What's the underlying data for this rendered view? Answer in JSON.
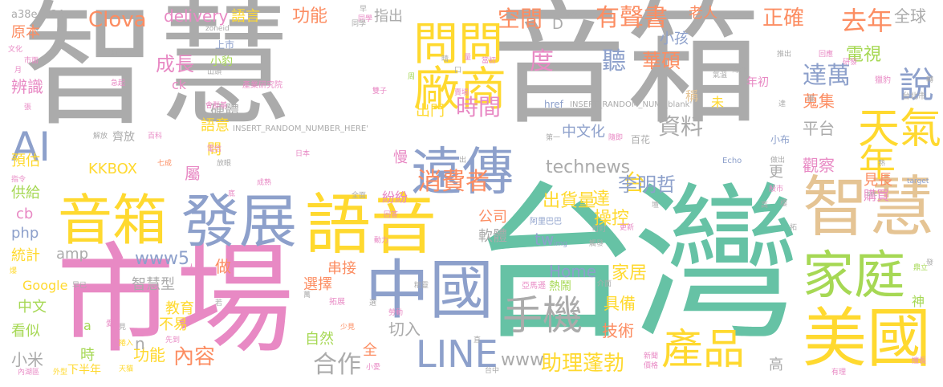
{
  "palette": {
    "gray": "#ababab",
    "pink": "#e889c4",
    "green": "#66c2a5",
    "blue": "#8da0cb",
    "yellow": "#ffd92f",
    "orange": "#fc8d62",
    "olive": "#a6d854",
    "tan": "#e5c494"
  },
  "words": [
    {
      "text": "智慧",
      "color": "gray"
    },
    {
      "text": "音箱",
      "color": "gray"
    },
    {
      "text": "台灣",
      "color": "green"
    },
    {
      "text": "市場",
      "color": "pink"
    },
    {
      "text": "音箱",
      "color": "yellow"
    },
    {
      "text": "發展",
      "color": "blue"
    },
    {
      "text": "語音",
      "color": "yellow"
    },
    {
      "text": "智慧",
      "color": "tan"
    },
    {
      "text": "中國",
      "color": "blue"
    },
    {
      "text": "家庭",
      "color": "olive"
    },
    {
      "text": "美國",
      "color": "yellow"
    },
    {
      "text": "遠傳",
      "color": "blue"
    },
    {
      "text": "問問",
      "color": "yellow"
    },
    {
      "text": "廠商",
      "color": "yellow"
    },
    {
      "text": "手機",
      "color": "gray"
    },
    {
      "text": "產品",
      "color": "yellow"
    },
    {
      "text": "LINE",
      "color": "blue"
    },
    {
      "text": "天氣",
      "color": "yellow"
    },
    {
      "text": "說",
      "color": "blue"
    },
    {
      "text": "年",
      "color": "yellow"
    },
    {
      "text": "AI",
      "color": "blue"
    },
    {
      "text": "消費者",
      "color": "orange"
    },
    {
      "text": "時間",
      "color": "pink"
    },
    {
      "text": "有聲書",
      "color": "orange"
    },
    {
      "text": "空間",
      "color": "orange"
    },
    {
      "text": "去年",
      "color": "orange"
    },
    {
      "text": "正確",
      "color": "orange"
    },
    {
      "text": "度",
      "color": "pink"
    },
    {
      "text": "聽",
      "color": "blue"
    },
    {
      "text": "華碩",
      "color": "orange"
    },
    {
      "text": "電視",
      "color": "olive"
    },
    {
      "text": "達萬",
      "color": "blue"
    },
    {
      "text": "台",
      "color": "yellow"
    },
    {
      "text": "李明哲",
      "color": "blue"
    },
    {
      "text": "資料",
      "color": "gray"
    },
    {
      "text": "technews",
      "color": "gray"
    },
    {
      "text": "中文化",
      "color": "blue"
    },
    {
      "text": "助理蓬勃",
      "color": "yellow"
    },
    {
      "text": "出貨量",
      "color": "yellow"
    },
    {
      "text": "達",
      "color": "yellow"
    },
    {
      "text": "操控",
      "color": "yellow"
    },
    {
      "text": "合作",
      "color": "gray"
    },
    {
      "text": "內容",
      "color": "orange"
    },
    {
      "text": "Clova",
      "color": "orange"
    },
    {
      "text": "delivery",
      "color": "pink"
    },
    {
      "text": "語言",
      "color": "yellow"
    },
    {
      "text": "功能",
      "color": "orange"
    },
    {
      "text": "指出",
      "color": "gray"
    },
    {
      "text": "全球",
      "color": "gray"
    },
    {
      "text": "老人",
      "color": "orange"
    },
    {
      "text": "原本",
      "color": "orange"
    },
    {
      "text": "成長",
      "color": "pink"
    },
    {
      "text": "硬體",
      "color": "gray"
    },
    {
      "text": "語意",
      "color": "yellow"
    },
    {
      "text": "辨識",
      "color": "pink"
    },
    {
      "text": "KKBOX",
      "color": "yellow"
    },
    {
      "text": "預估",
      "color": "yellow"
    },
    {
      "text": "供給",
      "color": "olive"
    },
    {
      "text": "cb",
      "color": "pink"
    },
    {
      "text": "php",
      "color": "blue"
    },
    {
      "text": "統計",
      "color": "yellow"
    },
    {
      "text": "amp",
      "color": "gray"
    },
    {
      "text": "www5",
      "color": "blue"
    },
    {
      "text": "Google",
      "color": "yellow"
    },
    {
      "text": "智慧型",
      "color": "gray"
    },
    {
      "text": "中文",
      "color": "olive"
    },
    {
      "text": "看似",
      "color": "olive"
    },
    {
      "text": "教育",
      "color": "yellow"
    },
    {
      "text": "不易",
      "color": "yellow"
    },
    {
      "text": "小米",
      "color": "gray"
    },
    {
      "text": "時",
      "color": "olive"
    },
    {
      "text": "下半年",
      "color": "yellow"
    },
    {
      "text": "功能",
      "color": "yellow"
    },
    {
      "text": "自然",
      "color": "olive"
    },
    {
      "text": "全",
      "color": "orange"
    },
    {
      "text": "切入",
      "color": "gray"
    },
    {
      "text": "技術",
      "color": "orange"
    },
    {
      "text": "Home",
      "color": "blue"
    },
    {
      "text": "www",
      "color": "gray"
    },
    {
      "text": "家居",
      "color": "yellow"
    },
    {
      "text": "具備",
      "color": "yellow"
    },
    {
      "text": "軟體",
      "color": "gray"
    },
    {
      "text": "公司",
      "color": "orange"
    },
    {
      "text": "tw",
      "color": "blue"
    },
    {
      "text": "出門",
      "color": "yellow"
    },
    {
      "text": "平台",
      "color": "gray"
    },
    {
      "text": "觀察",
      "color": "pink"
    },
    {
      "text": "蒐集",
      "color": "orange"
    },
    {
      "text": "見長",
      "color": "orange"
    },
    {
      "text": "購買",
      "color": "pink"
    },
    {
      "text": "小孩",
      "color": "blue"
    },
    {
      "text": "串接",
      "color": "orange"
    },
    {
      "text": "選擇",
      "color": "orange"
    },
    {
      "text": "做",
      "color": "orange"
    },
    {
      "text": "慢",
      "color": "pink"
    },
    {
      "text": "D",
      "color": "gray"
    },
    {
      "text": "a38e4234",
      "color": "gray"
    },
    {
      "text": "href",
      "color": "blue"
    },
    {
      "text": "INSERT_RANDOM_NUM _blank'",
      "color": "gray"
    },
    {
      "text": "INSERT_RANDOM_NUMBER_HERE'",
      "color": "gray"
    },
    {
      "text": "齊放",
      "color": "gray"
    },
    {
      "text": "百花",
      "color": "gray"
    },
    {
      "text": "未",
      "color": "yellow"
    },
    {
      "text": "稱",
      "color": "tan"
    },
    {
      "text": "更",
      "color": "gray"
    },
    {
      "text": "屬",
      "color": "pink"
    },
    {
      "text": "問",
      "color": "yellow"
    },
    {
      "text": "紛紛",
      "color": "pink"
    },
    {
      "text": "高",
      "color": "gray"
    },
    {
      "text": "n",
      "color": "gray"
    },
    {
      "text": "a",
      "color": "olive"
    },
    {
      "text": "ck",
      "color": "pink"
    },
    {
      "text": "上市",
      "color": "blue"
    },
    {
      "text": "小豹",
      "color": "olive"
    },
    {
      "text": "年初",
      "color": "pink"
    },
    {
      "text": "小布",
      "color": "blue"
    },
    {
      "text": "神",
      "color": "olive"
    },
    {
      "text": "zoneid",
      "color": "gray"
    },
    {
      "text": "時代",
      "color": "gray"
    },
    {
      "text": "產業研究院",
      "color": "pink"
    },
    {
      "text": "台北市",
      "color": "gray"
    },
    {
      "text": "Echo",
      "color": "blue"
    },
    {
      "text": "阿里巴巴",
      "color": "blue"
    },
    {
      "text": "亞馬遜",
      "color": "pink"
    },
    {
      "text": "熱鬧",
      "color": "olive"
    },
    {
      "text": "拓展",
      "color": "pink"
    },
    {
      "text": "介面",
      "color": "gray"
    },
    {
      "text": "target",
      "color": "blue"
    },
    {
      "text": "src",
      "color": "gray"
    },
    {
      "text": "img",
      "color": "blue"
    },
    {
      "text": "小愛",
      "color": "pink"
    },
    {
      "text": "台中",
      "color": "gray"
    },
    {
      "text": "有理",
      "color": "pink"
    },
    {
      "text": "天貓",
      "color": "yellow"
    },
    {
      "text": "外型",
      "color": "yellow"
    },
    {
      "text": "日本",
      "color": "pink"
    },
    {
      "text": "做出",
      "color": "gray"
    },
    {
      "text": "殷市",
      "color": "pink"
    },
    {
      "text": "推出",
      "color": "gray"
    },
    {
      "text": "回應",
      "color": "pink"
    },
    {
      "text": "研發",
      "color": "pink"
    },
    {
      "text": "海外",
      "color": "gray"
    },
    {
      "text": "氣溫",
      "color": "gray"
    },
    {
      "text": "獵豹",
      "color": "pink"
    },
    {
      "text": "解放",
      "color": "gray"
    },
    {
      "text": "百科",
      "color": "pink"
    },
    {
      "text": "電信",
      "color": "pink"
    },
    {
      "text": "放眼",
      "color": "gray"
    },
    {
      "text": "成熟",
      "color": "pink"
    },
    {
      "text": "七成",
      "color": "orange"
    },
    {
      "text": "第一",
      "color": "gray"
    },
    {
      "text": "隨即",
      "color": "pink"
    },
    {
      "text": "賣場",
      "color": "pink"
    },
    {
      "text": "同學",
      "color": "pink"
    },
    {
      "text": "雙子",
      "color": "pink"
    },
    {
      "text": "文化",
      "color": "pink"
    },
    {
      "text": "市面",
      "color": "pink"
    },
    {
      "text": "月",
      "color": "pink"
    },
    {
      "text": "張",
      "color": "pink"
    },
    {
      "text": "指令",
      "color": "pink"
    },
    {
      "text": "爆",
      "color": "yellow"
    },
    {
      "text": "早已",
      "color": "gray"
    },
    {
      "text": "人機",
      "color": "pink"
    },
    {
      "text": "動力",
      "color": "pink"
    },
    {
      "text": "見",
      "color": "gray"
    },
    {
      "text": "捲入",
      "color": "yellow"
    },
    {
      "text": "先到",
      "color": "pink"
    },
    {
      "text": "少見",
      "color": "orange"
    },
    {
      "text": "勞動",
      "color": "pink"
    },
    {
      "text": "新聞",
      "color": "pink"
    },
    {
      "text": "價格",
      "color": "pink"
    },
    {
      "text": "更新",
      "color": "pink"
    },
    {
      "text": "拓",
      "color": "gray"
    },
    {
      "text": "鼎立",
      "color": "olive"
    },
    {
      "text": "擅長",
      "color": "pink"
    },
    {
      "text": "回答",
      "color": "pink"
    },
    {
      "text": "叮叮",
      "color": "gray"
    },
    {
      "text": "觸發",
      "color": "gray"
    },
    {
      "text": "全面",
      "color": "gray"
    },
    {
      "text": "愛",
      "color": "pink"
    },
    {
      "text": "內湖區",
      "color": "pink"
    },
    {
      "text": "精靈",
      "color": "gray"
    },
    {
      "text": "avw",
      "color": "gray"
    },
    {
      "text": "量",
      "color": "pink"
    },
    {
      "text": "晴",
      "color": "gray"
    },
    {
      "text": "口",
      "color": "gray"
    },
    {
      "text": "當初",
      "color": "pink"
    },
    {
      "text": "周",
      "color": "olive"
    },
    {
      "text": "早",
      "color": "gray"
    },
    {
      "text": "同學",
      "color": "gray"
    },
    {
      "text": "山頭",
      "color": "gray"
    },
    {
      "text": "急起",
      "color": "pink"
    },
    {
      "text": "會群基",
      "color": "pink"
    },
    {
      "text": "選",
      "color": "gray"
    },
    {
      "text": "萬",
      "color": "gray"
    },
    {
      "text": "若",
      "color": "gray"
    },
    {
      "text": "直",
      "color": "gray"
    },
    {
      "text": "擺",
      "color": "gray"
    },
    {
      "text": "達",
      "color": "gray"
    },
    {
      "text": "底",
      "color": "pink"
    },
    {
      "text": "熟",
      "color": "gray"
    },
    {
      "text": "高",
      "color": "gray"
    },
    {
      "text": "壇",
      "color": "gray"
    },
    {
      "text": "樓",
      "color": "gray"
    },
    {
      "text": "轉",
      "color": "gray"
    },
    {
      "text": "發",
      "color": "gray"
    },
    {
      "text": "出",
      "color": "gray"
    }
  ]
}
